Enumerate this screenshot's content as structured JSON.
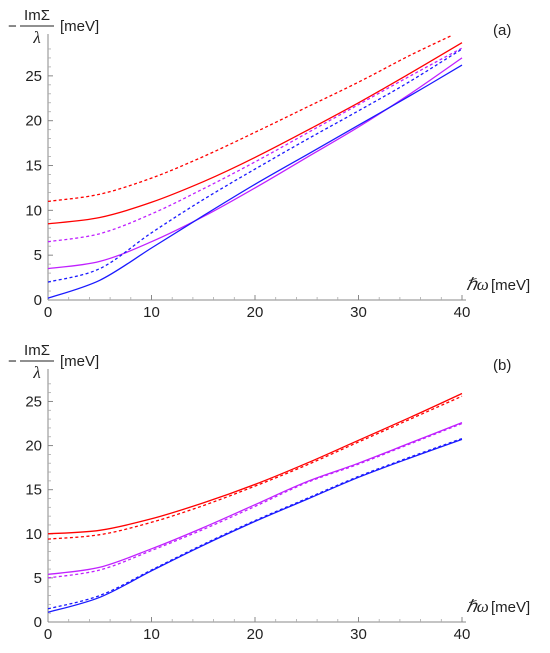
{
  "chart_data": [
    {
      "type": "line",
      "panel_label": "(a)",
      "ylabel_numerator": "ImΣ",
      "ylabel_denominator": "λ",
      "ylabel_minus": "−",
      "ylabel_unit": "[meV]",
      "xlabel_symbol": "ℏω",
      "xlabel_unit": "[meV]",
      "xlim": [
        0,
        40
      ],
      "ylim": [
        0,
        29
      ],
      "xticks": [
        0,
        10,
        20,
        30,
        40
      ],
      "yticks": [
        0,
        5,
        10,
        15,
        20,
        25
      ],
      "grid": false,
      "series": [
        {
          "color": "#ff0000",
          "dash": true,
          "x": [
            0,
            5,
            10,
            15,
            20,
            25,
            30,
            35,
            39
          ],
          "y": [
            11.0,
            11.8,
            13.6,
            16.0,
            18.7,
            21.5,
            24.3,
            27.3,
            29.5
          ]
        },
        {
          "color": "#ff0000",
          "dash": false,
          "x": [
            0,
            5,
            10,
            15,
            20,
            25,
            30,
            35,
            40
          ],
          "y": [
            8.5,
            9.2,
            10.9,
            13.2,
            15.9,
            18.9,
            22.0,
            25.3,
            28.7
          ]
        },
        {
          "color": "#c020ff",
          "dash": true,
          "x": [
            0,
            5,
            10,
            15,
            20,
            25,
            30,
            35,
            40
          ],
          "y": [
            6.5,
            7.4,
            9.6,
            12.4,
            15.4,
            18.6,
            21.8,
            25.0,
            28.1
          ]
        },
        {
          "color": "#c020ff",
          "dash": false,
          "x": [
            0,
            5,
            10,
            15,
            20,
            25,
            30,
            35,
            40
          ],
          "y": [
            3.5,
            4.3,
            6.5,
            9.3,
            12.5,
            15.9,
            19.3,
            23.0,
            27.0
          ]
        },
        {
          "color": "#1a1aff",
          "dash": true,
          "x": [
            0,
            5,
            10,
            15,
            20,
            25,
            30,
            35,
            40
          ],
          "y": [
            2.0,
            3.5,
            7.5,
            11.2,
            14.6,
            17.9,
            21.1,
            24.4,
            28.0
          ]
        },
        {
          "color": "#1a1aff",
          "dash": false,
          "x": [
            0,
            5,
            10,
            15,
            20,
            25,
            30,
            35,
            40
          ],
          "y": [
            0.2,
            2.2,
            5.8,
            9.4,
            12.9,
            16.2,
            19.5,
            22.8,
            26.2
          ]
        }
      ]
    },
    {
      "type": "line",
      "panel_label": "(b)",
      "ylabel_numerator": "ImΣ",
      "ylabel_denominator": "λ",
      "ylabel_minus": "−",
      "ylabel_unit": "[meV]",
      "xlabel_symbol": "ℏω",
      "xlabel_unit": "[meV]",
      "xlim": [
        0,
        40
      ],
      "ylim": [
        0,
        28
      ],
      "xticks": [
        0,
        10,
        20,
        30,
        40
      ],
      "yticks": [
        0,
        5,
        10,
        15,
        20,
        25
      ],
      "grid": false,
      "series": [
        {
          "color": "#ff0000",
          "dash": false,
          "x": [
            0,
            5,
            10,
            15,
            20,
            25,
            30,
            35,
            40
          ],
          "y": [
            10.0,
            10.4,
            11.7,
            13.5,
            15.6,
            18.0,
            20.6,
            23.2,
            25.9
          ]
        },
        {
          "color": "#ff0000",
          "dash": true,
          "x": [
            0,
            5,
            10,
            15,
            20,
            25,
            30,
            35,
            40
          ],
          "y": [
            9.4,
            9.9,
            11.3,
            13.2,
            15.4,
            17.8,
            20.4,
            23.0,
            25.6
          ]
        },
        {
          "color": "#c020ff",
          "dash": false,
          "x": [
            0,
            5,
            10,
            15,
            20,
            25,
            30,
            35,
            40
          ],
          "y": [
            5.4,
            6.2,
            8.3,
            10.7,
            13.3,
            15.9,
            18.0,
            20.3,
            22.6
          ]
        },
        {
          "color": "#c020ff",
          "dash": true,
          "x": [
            0,
            5,
            10,
            15,
            20,
            25,
            30,
            35,
            40
          ],
          "y": [
            5.0,
            5.9,
            8.1,
            10.5,
            13.1,
            15.8,
            17.9,
            20.2,
            22.5
          ]
        },
        {
          "color": "#1a1aff",
          "dash": true,
          "x": [
            0,
            5,
            10,
            15,
            20,
            25,
            30,
            35,
            40
          ],
          "y": [
            1.5,
            3.0,
            5.9,
            8.8,
            11.5,
            14.0,
            16.5,
            18.7,
            20.8
          ]
        },
        {
          "color": "#1a1aff",
          "dash": false,
          "x": [
            0,
            5,
            10,
            15,
            20,
            25,
            30,
            35,
            40
          ],
          "y": [
            1.1,
            2.8,
            5.8,
            8.7,
            11.4,
            13.9,
            16.4,
            18.6,
            20.7
          ]
        }
      ]
    }
  ]
}
